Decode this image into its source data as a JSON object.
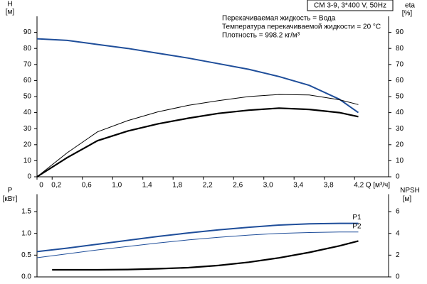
{
  "chart_data": [
    {
      "type": "line",
      "title": "CM 3-9, 3*400 V, 50Hz",
      "annotations": [
        "Перекачиваемая жидкость = Вода",
        "Температура перекачиваемой жидкости = 20 °C",
        "Плотность = 998.2 кг/м³"
      ],
      "ylabel": "H",
      "yunit": "[м]",
      "y2label": "eta",
      "y2unit": "[%]",
      "xlabel": "Q [м³/ч]",
      "xlim": [
        0,
        4.65
      ],
      "xticks": [
        0,
        {
          "value": 0.2,
          "label": "0,2"
        },
        {
          "value": 0.6,
          "label": "0,6"
        },
        {
          "value": 1.0,
          "label": "1,0"
        },
        {
          "value": 1.4,
          "label": "1,4"
        },
        {
          "value": 1.8,
          "label": "1,8"
        },
        {
          "value": 2.2,
          "label": "2,2"
        },
        {
          "value": 2.6,
          "label": "2,6"
        },
        {
          "value": 3.0,
          "label": "3,0"
        },
        {
          "value": 3.4,
          "label": "3,4"
        },
        {
          "value": 3.8,
          "label": "3,8"
        },
        {
          "value": 4.2,
          "label": "4,2"
        }
      ],
      "ylim": [
        0,
        100
      ],
      "yticks": [
        0,
        10,
        20,
        30,
        40,
        50,
        60,
        70,
        80,
        90
      ],
      "y2lim": [
        0,
        100
      ],
      "y2ticks": [
        0,
        10,
        20,
        30,
        40,
        50,
        60,
        70,
        80,
        90
      ],
      "series": [
        {
          "color": "#1f4e9a",
          "line_width": 2,
          "x": [
            0,
            0.4,
            0.8,
            1.2,
            1.6,
            2.0,
            2.4,
            2.8,
            3.2,
            3.6,
            4.0,
            4.25
          ],
          "values": [
            86,
            85,
            82.5,
            80,
            77,
            74,
            70.5,
            67,
            62.5,
            57,
            48.3,
            40
          ]
        },
        {
          "color": "#000000",
          "line_width": 1,
          "axis": "y2",
          "x": [
            0,
            0.4,
            0.8,
            1.2,
            1.6,
            2.0,
            2.4,
            2.8,
            3.2,
            3.6,
            4.0,
            4.25
          ],
          "values": [
            0,
            15,
            28,
            35,
            40.5,
            44.5,
            47.5,
            50,
            51.3,
            51,
            48,
            45
          ]
        },
        {
          "color": "#000000",
          "line_width": 2.2,
          "axis": "y2",
          "x": [
            0,
            0.4,
            0.8,
            1.2,
            1.6,
            2.0,
            2.4,
            2.8,
            3.2,
            3.6,
            4.0,
            4.25
          ],
          "values": [
            0,
            12,
            22.5,
            28.5,
            33,
            36.5,
            39.5,
            41.5,
            42.8,
            42,
            40,
            37.5
          ]
        }
      ]
    },
    {
      "type": "line",
      "ylabel": "P",
      "yunit": "[кВт]",
      "y2label": "NPSH",
      "y2unit": "[м]",
      "xlim": [
        0,
        4.65
      ],
      "ylim": [
        0,
        1.9
      ],
      "yticks": [
        {
          "value": 0,
          "label": "0.0"
        },
        {
          "value": 0.5,
          "label": "0.5"
        },
        {
          "value": 1.0,
          "label": "1.0"
        },
        {
          "value": 1.5,
          "label": "1.5"
        }
      ],
      "y2lim": [
        0,
        7.6
      ],
      "y2ticks": [
        0,
        2,
        4,
        6
      ],
      "series": [
        {
          "name": "P1",
          "color": "#1f4e9a",
          "line_width": 2,
          "x": [
            0,
            0.4,
            0.8,
            1.2,
            1.6,
            2.0,
            2.4,
            2.8,
            3.2,
            3.6,
            4.0,
            4.25
          ],
          "values": [
            0.58,
            0.66,
            0.75,
            0.84,
            0.93,
            1.01,
            1.08,
            1.14,
            1.19,
            1.22,
            1.23,
            1.23
          ]
        },
        {
          "name": "P2",
          "color": "#1f4e9a",
          "line_width": 1,
          "x": [
            0,
            0.4,
            0.8,
            1.2,
            1.6,
            2.0,
            2.4,
            2.8,
            3.2,
            3.6,
            4.0,
            4.25
          ],
          "values": [
            0.44,
            0.53,
            0.62,
            0.7,
            0.78,
            0.85,
            0.91,
            0.96,
            1.0,
            1.02,
            1.03,
            1.03
          ]
        },
        {
          "color": "#000000",
          "line_width": 2.2,
          "axis": "y2",
          "x": [
            0.2,
            0.8,
            1.2,
            1.6,
            2.0,
            2.4,
            2.8,
            3.2,
            3.6,
            4.0,
            4.25
          ],
          "values": [
            0.65,
            0.65,
            0.68,
            0.75,
            0.85,
            1.05,
            1.35,
            1.75,
            2.25,
            2.85,
            3.3
          ]
        }
      ]
    }
  ]
}
